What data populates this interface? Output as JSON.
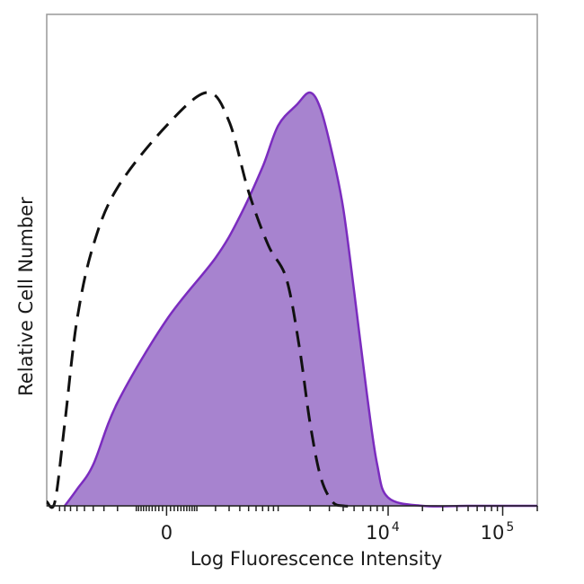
{
  "chart_data": {
    "type": "area",
    "title": "",
    "xlabel": "Log Fluorescence Intensity",
    "ylabel": "Relative Cell Number",
    "x_scale": "biexponential",
    "xlim": [
      -1200,
      200000
    ],
    "ylim": [
      0,
      100
    ],
    "grid": false,
    "legend": "none",
    "x_ticks": [
      {
        "value": 0,
        "label": "0",
        "base": "",
        "exp": ""
      },
      {
        "value": 10000,
        "label": "10^4",
        "base": "10",
        "exp": "4"
      },
      {
        "value": 100000,
        "label": "10^5",
        "base": "10",
        "exp": "5"
      }
    ],
    "series": [
      {
        "style": "dashed",
        "color": "#111111",
        "fill": "none",
        "x": [
          -1200,
          -1000,
          -800,
          -600,
          -400,
          -200,
          0,
          150,
          300,
          500,
          800,
          1200,
          1600,
          2000,
          2500,
          3200,
          4000,
          5000
        ],
        "values": [
          1,
          1,
          20,
          45,
          63,
          77,
          92,
          100,
          93,
          76,
          63,
          55,
          38,
          20,
          7,
          1,
          0,
          0
        ]
      },
      {
        "style": "filled",
        "color": "#7b2cbf",
        "fill": "#a783cf",
        "x": [
          -800,
          -600,
          -400,
          -200,
          0,
          200,
          400,
          700,
          1000,
          1500,
          2000,
          2500,
          3200,
          4000,
          5000,
          6500,
          8000,
          10000,
          20000,
          50000,
          100000,
          200000
        ],
        "values": [
          0,
          4,
          10,
          25,
          45,
          60,
          70,
          82,
          92,
          97,
          100,
          96,
          85,
          72,
          52,
          27,
          10,
          2,
          0,
          0,
          0,
          0
        ]
      }
    ]
  }
}
